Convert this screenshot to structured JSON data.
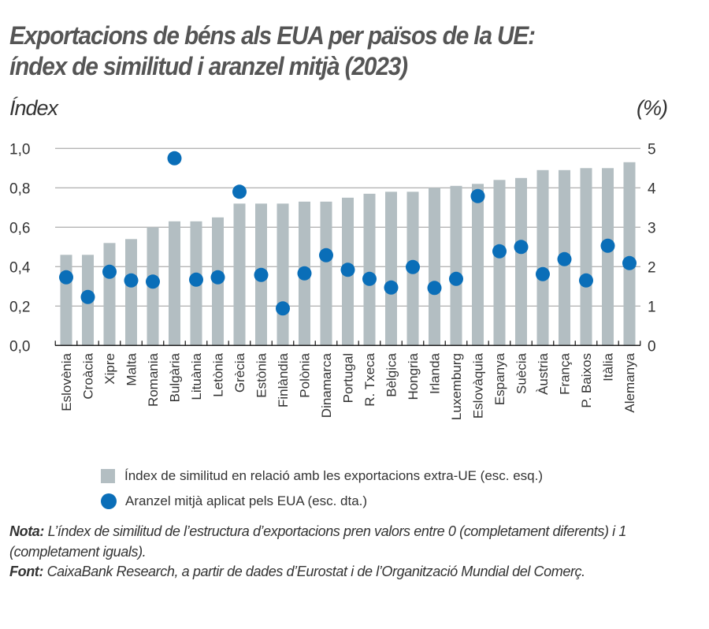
{
  "chart_data": {
    "type": "bar",
    "title": "Exportacions de béns als EUA per països de la UE: índex de similitud i aranzel mitjà (2023)",
    "title_lines": [
      "Exportacions de béns als EUA per països de la UE:",
      "índex de similitud i aranzel mitjà (2023)"
    ],
    "ylabel_left": "Índex",
    "ylabel_right": "(%)",
    "ylim_left": [
      0,
      1.0
    ],
    "ylim_right": [
      0,
      5
    ],
    "yticks_left": [
      "0,0",
      "0,2",
      "0,4",
      "0,6",
      "0,8",
      "1,0"
    ],
    "yticks_right": [
      "0",
      "1",
      "2",
      "3",
      "4",
      "5"
    ],
    "grid": true,
    "categories": [
      "Eslovènia",
      "Croàcia",
      "Xipre",
      "Malta",
      "Romania",
      "Bulgària",
      "Lituània",
      "Letònia",
      "Grècia",
      "Estònia",
      "Finlàndia",
      "Polònia",
      "Dinamarca",
      "Portugal",
      "R. Txeca",
      "Bèlgica",
      "Hongria",
      "Irlanda",
      "Luxemburg",
      "Eslovàquia",
      "Espanya",
      "Suècia",
      "Àustria",
      "França",
      "P. Baixos",
      "Itàlia",
      "Alemanya"
    ],
    "series": [
      {
        "name": "Índex de similitud en relació amb les exportacions extra-UE (esc. esq.)",
        "type": "bar",
        "axis": "left",
        "color": "#b3bec2",
        "values": [
          0.46,
          0.46,
          0.52,
          0.54,
          0.6,
          0.63,
          0.63,
          0.65,
          0.72,
          0.72,
          0.72,
          0.73,
          0.73,
          0.75,
          0.77,
          0.78,
          0.78,
          0.8,
          0.81,
          0.82,
          0.84,
          0.85,
          0.89,
          0.89,
          0.9,
          0.9,
          0.93
        ]
      },
      {
        "name": "Aranzel mitjà aplicat pels EUA (esc. dta.)",
        "type": "scatter",
        "axis": "right",
        "color": "#0a6eb8",
        "values": [
          1.73,
          1.23,
          1.87,
          1.65,
          1.62,
          4.75,
          1.67,
          1.73,
          3.9,
          1.79,
          0.94,
          1.83,
          2.29,
          1.92,
          1.69,
          1.47,
          1.99,
          1.46,
          1.69,
          3.79,
          2.39,
          2.5,
          1.81,
          2.19,
          1.65,
          2.53,
          2.09
        ]
      }
    ],
    "legend_position": "bottom"
  },
  "notes": {
    "nota_label": "Nota:",
    "nota_text": " L’índex de similitud de l’estructura d’exportacions pren valors entre 0 (completament diferents) i 1 (completament iguals).",
    "font_label": "Font:",
    "font_text": " CaixaBank Research, a partir de dades d’Eurostat i de l’Organització Mundial del Comerç."
  }
}
